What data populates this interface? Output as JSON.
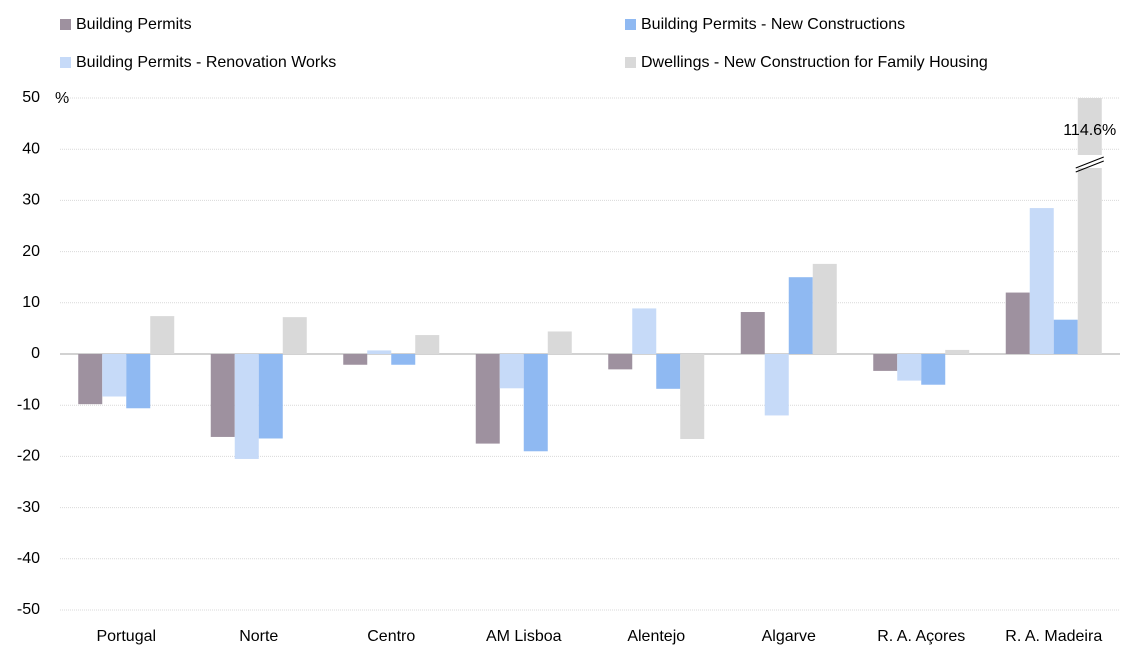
{
  "chart_data": {
    "type": "bar",
    "ylabel": "%",
    "categories": [
      "Portugal",
      "Norte",
      "Centro",
      "AM Lisboa",
      "Alentejo",
      "Algarve",
      "R. A. Açores",
      "R. A. Madeira"
    ],
    "series": [
      {
        "name": "Building Permits",
        "color": "#9e919f",
        "values": [
          -9.8,
          -16.2,
          -2.1,
          -17.5,
          -3.0,
          8.2,
          -3.3,
          12.0
        ]
      },
      {
        "name": "Building Permits - Renovation Works",
        "color": "#c6daf8",
        "values": [
          -8.3,
          -20.5,
          0.7,
          -6.7,
          8.9,
          -12.0,
          -5.2,
          28.5
        ]
      },
      {
        "name": "Building Permits - New Constructions",
        "color": "#8fb9f2",
        "values": [
          -10.6,
          -16.5,
          -2.1,
          -19.0,
          -6.8,
          15.0,
          -6.0,
          6.7
        ]
      },
      {
        "name": "Dwellings - New Construction for Family Housing",
        "color": "#d9d9d9",
        "values": [
          7.4,
          7.2,
          3.7,
          4.4,
          -16.6,
          17.6,
          0.8,
          114.6
        ],
        "value_labels": [
          null,
          null,
          null,
          null,
          null,
          null,
          null,
          "114.6%"
        ]
      }
    ],
    "ylim": [
      -50,
      50
    ],
    "yticks": [
      -50,
      -40,
      -30,
      -20,
      -10,
      0,
      10,
      20,
      30,
      40,
      50
    ],
    "grid": true
  }
}
